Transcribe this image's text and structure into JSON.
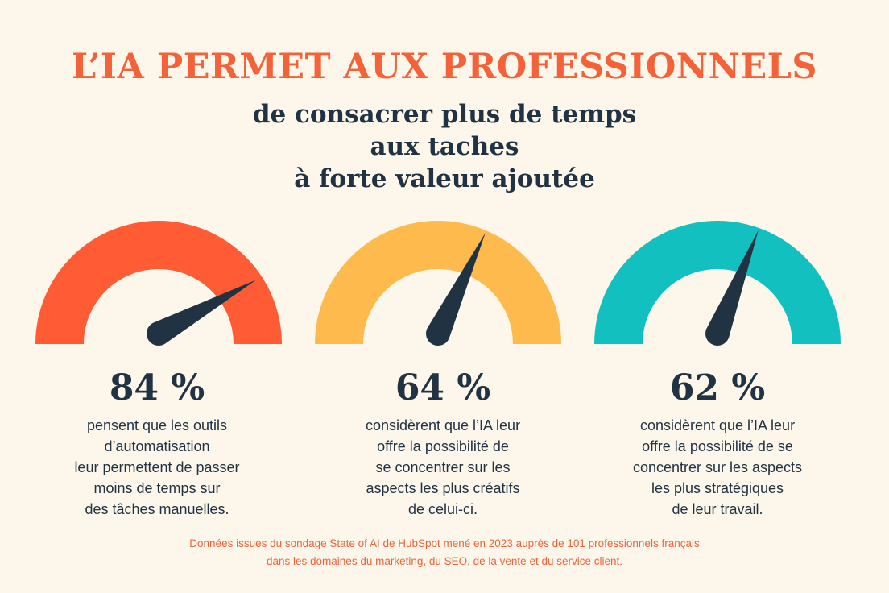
{
  "header": {
    "title": "L’IA PERMET AUX PROFESSIONNELS",
    "subtitle_lines": [
      "de consacrer plus de temps",
      "aux taches",
      "à forte valeur ajoutée"
    ]
  },
  "gauges": [
    {
      "value_label": "84 %",
      "value": 84,
      "color": "#ff5c35",
      "description_lines": [
        "pensent que les outils",
        "d’automatisation",
        "leur permettent de passer",
        "moins de temps sur",
        "des tâches manuelles."
      ]
    },
    {
      "value_label": "64 %",
      "value": 64,
      "color": "#ffba4e",
      "description_lines": [
        "considèrent que l’IA leur",
        "offre la possibilité de",
        "se concentrer sur les",
        "aspects les plus créatifs",
        "de celui-ci."
      ]
    },
    {
      "value_label": "62 %",
      "value": 62,
      "color": "#12c0c0",
      "description_lines": [
        "considèrent que l’IA leur",
        "offre la possibilité de se",
        "concentrer sur les aspects",
        "les plus stratégiques",
        "de leur travail."
      ]
    }
  ],
  "footer": {
    "source_lines": [
      "Données issues du sondage State of AI de HubSpot mené en 2023 auprès de 101 professionnels français",
      "dans les domaines du marketing, du SEO, de la vente et du service client."
    ]
  },
  "colors": {
    "title": "#f4623a",
    "text": "#213343",
    "needle": "#213343",
    "source": "#f4623a",
    "background": "#fdf6ea"
  }
}
